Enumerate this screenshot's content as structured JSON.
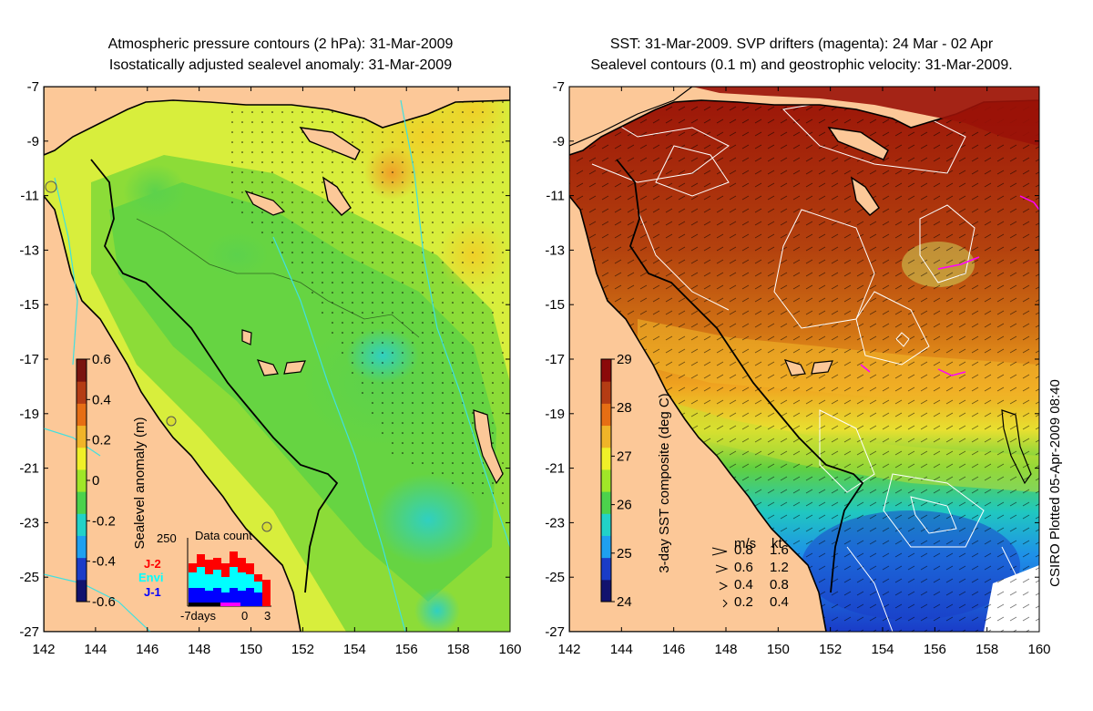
{
  "left_panel": {
    "title_line1": "Atmospheric pressure contours (2 hPa): 31-Mar-2009",
    "title_line2": "Isostatically adjusted sealevel anomaly: 31-Mar-2009",
    "colorbar": {
      "label": "Sealevel anomaly (m)",
      "ticks": [
        "0.6",
        "0.4",
        "0.2",
        "0",
        "-0.2",
        "-0.4",
        "-0.6"
      ],
      "min": -0.6,
      "max": 0.6,
      "colors": [
        "#12126e",
        "#1a3cc8",
        "#1ea0f0",
        "#22d2c8",
        "#4cd24c",
        "#a0e628",
        "#f0f028",
        "#f0b428",
        "#e66e14",
        "#b43c14",
        "#7a1410"
      ]
    },
    "inset": {
      "title": "Data count",
      "ymax_label": "250",
      "series_labels": [
        {
          "name": "J-2",
          "color": "#ff0000"
        },
        {
          "name": "Envi",
          "color": "#00ffff"
        },
        {
          "name": "J-1",
          "color": "#0000ff"
        }
      ],
      "x_labels": [
        "-7days",
        "0",
        "3"
      ]
    }
  },
  "right_panel": {
    "title_line1": "SST: 31-Mar-2009. SVP drifters (magenta): 24 Mar - 02 Apr",
    "title_line2": "Sealevel contours (0.1 m) and geostrophic velocity: 31-Mar-2009.",
    "colorbar": {
      "label": "3-day SST composite (deg C)",
      "ticks": [
        "29",
        "28",
        "27",
        "26",
        "25",
        "24"
      ],
      "min": 24,
      "max": 29,
      "colors": [
        "#12126e",
        "#1a3cc8",
        "#1ea0f0",
        "#22d2c8",
        "#4cd24c",
        "#a0e628",
        "#f0f028",
        "#f0b428",
        "#e66e14",
        "#b43c14",
        "#8b0a0a"
      ]
    },
    "velocity_legend": {
      "header_ms": "m/s",
      "header_kt": "kt",
      "rows": [
        {
          "ms": "0.8",
          "kt": "1.6"
        },
        {
          "ms": "0.6",
          "kt": "1.2"
        },
        {
          "ms": "0.4",
          "kt": "0.8"
        },
        {
          "ms": "0.2",
          "kt": "0.4"
        }
      ]
    }
  },
  "axes": {
    "lon_ticks": [
      "142",
      "144",
      "146",
      "148",
      "150",
      "152",
      "154",
      "156",
      "158",
      "160"
    ],
    "lat_ticks": [
      "-7",
      "-9",
      "-11",
      "-13",
      "-15",
      "-17",
      "-19",
      "-21",
      "-23",
      "-25",
      "-27"
    ]
  },
  "credit": "CSIRO Plotted 05-Apr-2009 08:40",
  "colors": {
    "land": "#fcc898",
    "coast": "#000000",
    "pressure_contour": "#40e0e0",
    "drifter": "#ff00ff"
  }
}
